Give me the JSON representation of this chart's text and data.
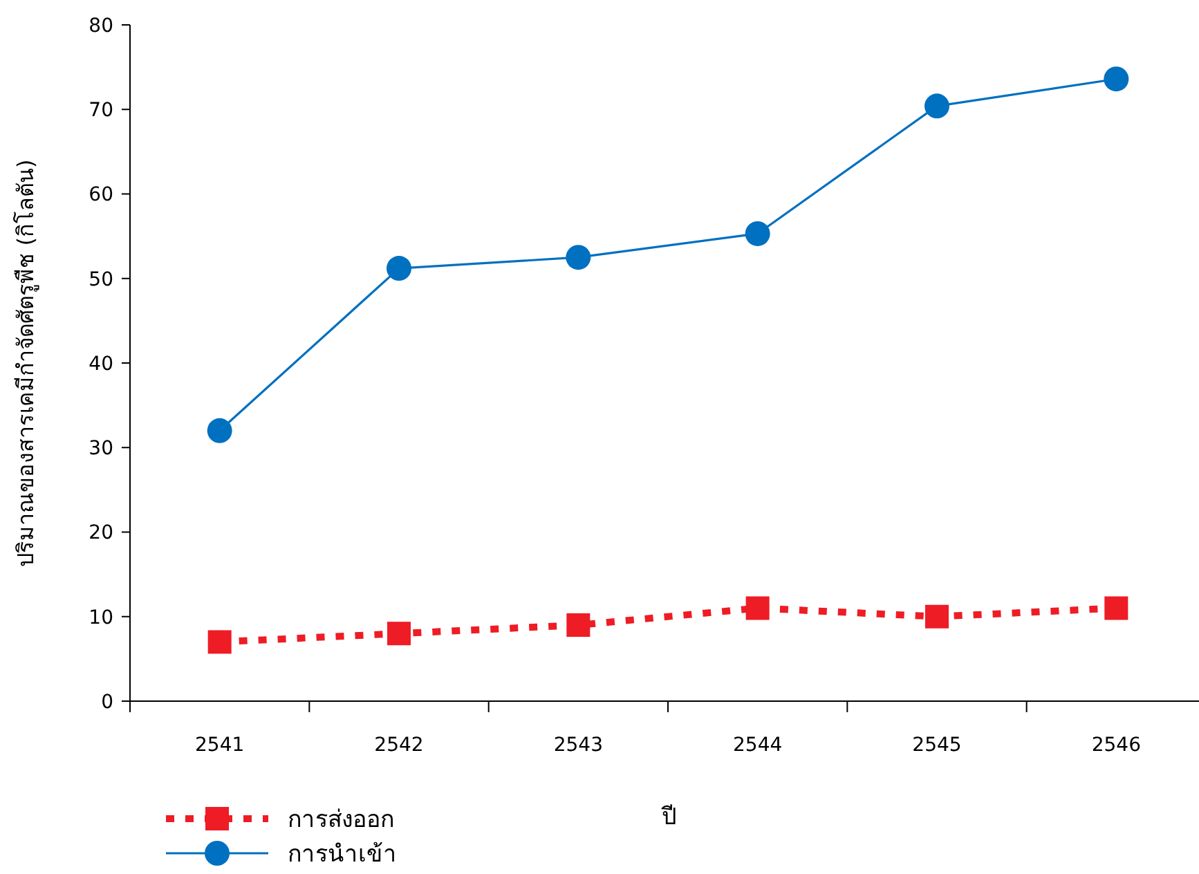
{
  "chart_data": {
    "type": "line",
    "xlabel": "ปี",
    "ylabel": "ปริมาณของสารเคมีกำจัดศัตรูพืช (กิโลตัน)",
    "categories": [
      "2541",
      "2542",
      "2543",
      "2544",
      "2545",
      "2546"
    ],
    "ylim": [
      0,
      80
    ],
    "yticks": [
      0,
      10,
      20,
      30,
      40,
      50,
      60,
      70,
      80
    ],
    "grid": false,
    "legend": "bottom left",
    "series": [
      {
        "name": "การส่งออก",
        "color": "#ee1c25",
        "marker": "square",
        "line_style": "dashed",
        "values": [
          7,
          8,
          9,
          11,
          10,
          11
        ]
      },
      {
        "name": "การนำเข้า",
        "color": "#0070c0",
        "marker": "circle",
        "line_style": "solid",
        "values": [
          32,
          51.2,
          52.5,
          55.3,
          70.4,
          73.6
        ]
      }
    ]
  }
}
